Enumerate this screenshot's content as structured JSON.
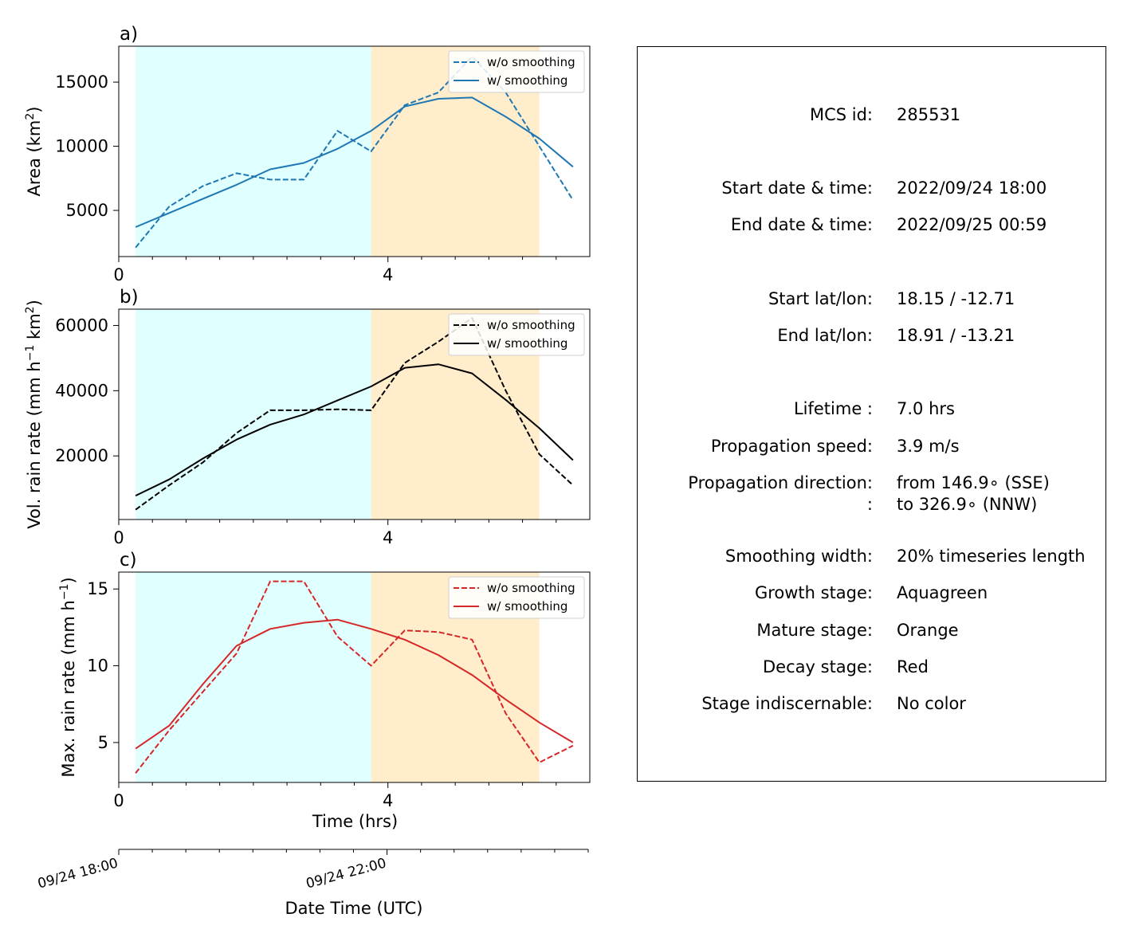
{
  "chart_data": [
    {
      "type": "line",
      "panel_label": "a)",
      "ylabel_text": "Area  (km",
      "ylabel_sup": "2",
      "ylabel_close": ")",
      "xlabel": "",
      "xlim": [
        0,
        7
      ],
      "ylim": [
        1400,
        17800
      ],
      "x_tick_values": [
        0,
        4
      ],
      "x_tick_labels": [
        "0",
        "4"
      ],
      "y_tick_values": [
        5000,
        10000,
        15000
      ],
      "y_tick_labels": [
        "5000",
        "10000",
        "15000"
      ],
      "stage_spans": [
        {
          "stage": "Growth",
          "x0": 0.25,
          "x1": 3.75,
          "color": "#e0ffff"
        },
        {
          "stage": "Mature",
          "x0": 3.75,
          "x1": 6.25,
          "color": "#ffedcc"
        }
      ],
      "legend_position": "top-right",
      "series": [
        {
          "name": "w/o smoothing",
          "style": "dashed",
          "color": "#1f77b4",
          "x": [
            0.25,
            0.75,
            1.25,
            1.75,
            2.25,
            2.75,
            3.25,
            3.75,
            4.25,
            4.75,
            5.25,
            5.75,
            6.25,
            6.75
          ],
          "y": [
            2100,
            5300,
            6900,
            7900,
            7400,
            7400,
            11200,
            9600,
            13200,
            14200,
            17000,
            14200,
            10000,
            5800
          ]
        },
        {
          "name": "w/ smoothing",
          "style": "solid",
          "color": "#1f77b4",
          "x": [
            0.25,
            0.75,
            1.25,
            1.75,
            2.25,
            2.75,
            3.25,
            3.75,
            4.25,
            4.75,
            5.25,
            5.75,
            6.25,
            6.75
          ],
          "y": [
            3700,
            4800,
            5900,
            7000,
            8200,
            8700,
            9800,
            11200,
            13100,
            13700,
            13800,
            12300,
            10600,
            8400
          ]
        }
      ]
    },
    {
      "type": "line",
      "panel_label": "b)",
      "ylabel_text": "Vol. rain rate (mm h",
      "ylabel_sup": "−1",
      "ylabel_mid": " km",
      "ylabel_sup2": "2",
      "ylabel_close": ")",
      "xlabel": "",
      "xlim": [
        0,
        7
      ],
      "ylim": [
        500,
        65000
      ],
      "x_tick_values": [
        0,
        4
      ],
      "x_tick_labels": [
        "0",
        "4"
      ],
      "y_tick_values": [
        20000,
        40000,
        60000
      ],
      "y_tick_labels": [
        "20000",
        "40000",
        "60000"
      ],
      "stage_spans": [
        {
          "stage": "Growth",
          "x0": 0.25,
          "x1": 3.75,
          "color": "#e0ffff"
        },
        {
          "stage": "Mature",
          "x0": 3.75,
          "x1": 6.25,
          "color": "#ffedcc"
        }
      ],
      "legend_position": "top-right",
      "series": [
        {
          "name": "w/o smoothing",
          "style": "dashed",
          "color": "#000000",
          "x": [
            0.25,
            0.75,
            1.25,
            1.75,
            2.25,
            2.75,
            3.25,
            3.75,
            4.25,
            4.75,
            5.25,
            5.75,
            6.25,
            6.75
          ],
          "y": [
            3500,
            11000,
            18000,
            27000,
            34000,
            34000,
            34300,
            34000,
            48500,
            55000,
            62300,
            40000,
            20500,
            11000
          ]
        },
        {
          "name": "w/ smoothing",
          "style": "solid",
          "color": "#000000",
          "x": [
            0.25,
            0.75,
            1.25,
            1.75,
            2.25,
            2.75,
            3.25,
            3.75,
            4.25,
            4.75,
            5.25,
            5.75,
            6.25,
            6.75
          ],
          "y": [
            7800,
            12800,
            19200,
            25000,
            29600,
            32700,
            37000,
            41300,
            47000,
            48100,
            45300,
            37200,
            28500,
            18700
          ]
        }
      ]
    },
    {
      "type": "line",
      "panel_label": "c)",
      "ylabel_text": "Max. rain rate  (mm h",
      "ylabel_sup": "−1",
      "ylabel_close": ")",
      "xlabel": "Time (hrs)",
      "xlim": [
        0,
        7
      ],
      "ylim": [
        2.4,
        16.1
      ],
      "x_tick_values": [
        0,
        4
      ],
      "x_tick_labels": [
        "0",
        "4"
      ],
      "y_tick_values": [
        5,
        10,
        15
      ],
      "y_tick_labels": [
        "5",
        "10",
        "15"
      ],
      "stage_spans": [
        {
          "stage": "Growth",
          "x0": 0.25,
          "x1": 3.75,
          "color": "#e0ffff"
        },
        {
          "stage": "Mature",
          "x0": 3.75,
          "x1": 6.25,
          "color": "#ffedcc"
        }
      ],
      "legend_position": "top-right",
      "series": [
        {
          "name": "w/o smoothing",
          "style": "dashed",
          "color": "#d62728",
          "x": [
            0.25,
            0.75,
            1.25,
            1.75,
            2.25,
            2.75,
            3.25,
            3.75,
            4.25,
            4.75,
            5.25,
            5.75,
            6.25,
            6.75
          ],
          "y": [
            3.0,
            5.8,
            8.3,
            10.8,
            15.5,
            15.5,
            11.9,
            10.0,
            12.3,
            12.2,
            11.7,
            6.9,
            3.7,
            4.8
          ]
        },
        {
          "name": "w/ smoothing",
          "style": "solid",
          "color": "#d62728",
          "x": [
            0.25,
            0.75,
            1.25,
            1.75,
            2.25,
            2.75,
            3.25,
            3.75,
            4.25,
            4.75,
            5.25,
            5.75,
            6.25,
            6.75
          ],
          "y": [
            4.6,
            6.1,
            8.8,
            11.3,
            12.4,
            12.8,
            13.0,
            12.4,
            11.7,
            10.7,
            9.4,
            7.8,
            6.3,
            5.0
          ]
        }
      ]
    }
  ],
  "date_axis": {
    "label": "Date Time (UTC)",
    "tick_labels": [
      {
        "text": "09/24 18:00",
        "hours": 0
      },
      {
        "text": "09/24 22:00",
        "hours": 4
      }
    ]
  },
  "info": {
    "mcs_id": {
      "label": "MCS id:",
      "value": "285531"
    },
    "start_datetime": {
      "label": "Start date & time:",
      "value": "2022/09/24 18:00"
    },
    "end_datetime": {
      "label": "End date & time:",
      "value": "2022/09/25 00:59"
    },
    "start_latlon": {
      "label": "Start lat/lon:",
      "value": "18.15 / -12.71"
    },
    "end_latlon": {
      "label": "End lat/lon:",
      "value": "18.91 / -13.21"
    },
    "lifetime": {
      "label": "Lifetime :",
      "value": "7.0 hrs"
    },
    "speed": {
      "label": "Propagation speed:",
      "value": "3.9 m/s"
    },
    "direction_from": {
      "label": "Propagation direction:",
      "value": "from 146.9∘ (SSE)"
    },
    "direction_to": {
      "label": ":",
      "value": "to   326.9∘ (NNW)"
    },
    "smoothing": {
      "label": "Smoothing width:",
      "value": "20% timeseries length"
    },
    "growth": {
      "label": "Growth stage:",
      "value": "Aquagreen"
    },
    "mature": {
      "label": "Mature stage:",
      "value": "Orange"
    },
    "decay": {
      "label": "Decay stage:",
      "value": "Red"
    },
    "indiscernable": {
      "label": "Stage indiscernable:",
      "value": "No color"
    }
  }
}
